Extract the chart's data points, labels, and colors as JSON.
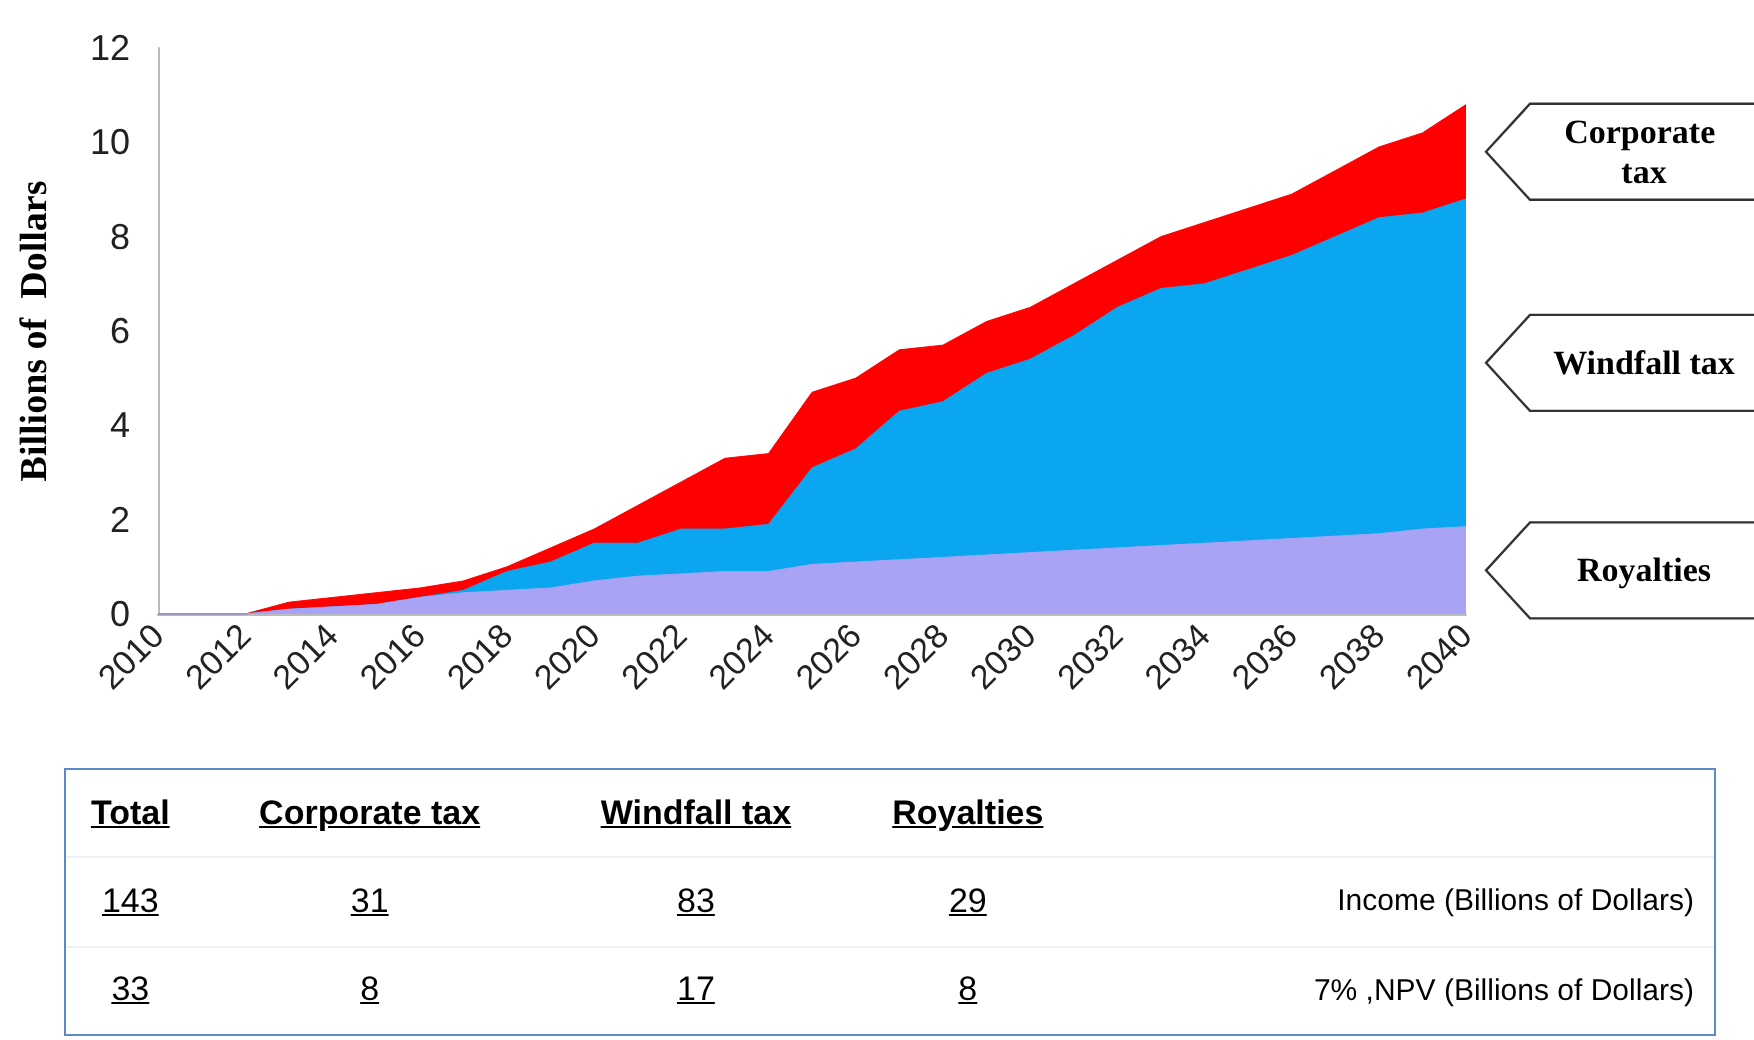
{
  "chart_data": {
    "type": "area",
    "stacked": true,
    "ylabel": "Billions of  Dollars",
    "x": [
      2010,
      2011,
      2012,
      2013,
      2014,
      2015,
      2016,
      2017,
      2018,
      2019,
      2020,
      2021,
      2022,
      2023,
      2024,
      2025,
      2026,
      2027,
      2028,
      2029,
      2030,
      2031,
      2032,
      2033,
      2034,
      2035,
      2036,
      2037,
      2038,
      2039,
      2040
    ],
    "series": [
      {
        "name": "Royalties",
        "color": "#a9a3f5",
        "values": [
          0,
          0,
          0,
          0.1,
          0.15,
          0.2,
          0.35,
          0.45,
          0.5,
          0.55,
          0.7,
          0.8,
          0.85,
          0.9,
          0.9,
          1.05,
          1.1,
          1.15,
          1.2,
          1.25,
          1.3,
          1.35,
          1.4,
          1.45,
          1.5,
          1.55,
          1.6,
          1.65,
          1.7,
          1.8,
          1.85
        ]
      },
      {
        "name": "Windfall tax",
        "color": "#0aa6f0",
        "values": [
          0,
          0,
          0,
          0,
          0,
          0,
          0,
          0.05,
          0.4,
          0.55,
          0.8,
          0.7,
          0.95,
          0.9,
          1.0,
          2.05,
          2.4,
          3.15,
          3.3,
          3.85,
          4.1,
          4.55,
          5.1,
          5.45,
          5.5,
          5.75,
          6.0,
          6.35,
          6.7,
          6.7,
          6.95
        ]
      },
      {
        "name": "Corporate tax",
        "color": "#ff0000",
        "values": [
          0,
          0,
          0,
          0.15,
          0.2,
          0.25,
          0.2,
          0.2,
          0.1,
          0.3,
          0.3,
          0.8,
          1.0,
          1.5,
          1.5,
          1.6,
          1.5,
          1.3,
          1.2,
          1.1,
          1.1,
          1.1,
          1.0,
          1.1,
          1.3,
          1.3,
          1.3,
          1.4,
          1.5,
          1.7,
          2.0
        ]
      }
    ],
    "xlim": [
      2010,
      2040
    ],
    "xticks": [
      2010,
      2012,
      2014,
      2016,
      2018,
      2020,
      2022,
      2024,
      2026,
      2028,
      2030,
      2032,
      2034,
      2036,
      2038,
      2040
    ],
    "ylim": [
      0,
      12
    ],
    "yticks": [
      0,
      2,
      4,
      6,
      8,
      10,
      12
    ],
    "grid": false,
    "annotations": [
      "Total",
      "Corporate tax",
      "Windfall tax",
      "Royalties",
      "143",
      "31",
      "83",
      "29",
      "Income (Billions of Dollars)",
      "33",
      "8",
      "17",
      "8",
      "7% ,NPV (Billions of Dollars)"
    ]
  }
}
